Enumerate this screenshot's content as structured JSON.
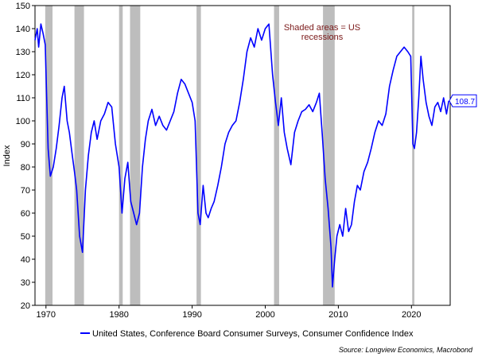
{
  "chart_data": {
    "type": "line",
    "title": "",
    "ylabel": "Index",
    "xlabel": "",
    "ylim": [
      20,
      150
    ],
    "xlim": [
      1968.5,
      2025.3
    ],
    "grid": false,
    "y_ticks": [
      20,
      30,
      40,
      50,
      60,
      70,
      80,
      90,
      100,
      110,
      120,
      130,
      140,
      150
    ],
    "x_ticks": [
      1970,
      1980,
      1990,
      2000,
      2010,
      2020
    ],
    "recessions": [
      [
        1969.9,
        1970.9
      ],
      [
        1973.9,
        1975.2
      ],
      [
        1980.0,
        1980.5
      ],
      [
        1981.5,
        1982.9
      ],
      [
        1990.6,
        1991.2
      ],
      [
        2001.2,
        2001.9
      ],
      [
        2007.9,
        2009.5
      ],
      [
        2020.1,
        2020.4
      ]
    ],
    "annotation": {
      "line1": "Shaded areas = US",
      "line2": "recessions",
      "color": "#7b1a1a"
    },
    "last_value": {
      "label": "108.7",
      "value": 108.7,
      "color": "#0000ff"
    },
    "legend": {
      "placement": "bottom",
      "entry": "United States, Conference Board Consumer Surveys, Consumer Confidence Index"
    },
    "source": "Source: Longview Economics, Macrobond",
    "series": [
      {
        "name": "United States, Conference Board Consumer Surveys, Consumer Confidence Index",
        "color": "#0000ff",
        "x": [
          1968.5,
          1968.8,
          1969.0,
          1969.3,
          1969.6,
          1969.9,
          1970.1,
          1970.3,
          1970.6,
          1971.0,
          1971.4,
          1971.8,
          1972.2,
          1972.5,
          1972.9,
          1973.2,
          1973.6,
          1973.9,
          1974.2,
          1974.6,
          1975.0,
          1975.4,
          1975.8,
          1976.2,
          1976.6,
          1977.0,
          1977.5,
          1978.0,
          1978.5,
          1979.0,
          1979.5,
          1980.0,
          1980.4,
          1980.8,
          1981.2,
          1981.6,
          1982.0,
          1982.4,
          1982.8,
          1983.2,
          1983.6,
          1984.0,
          1984.5,
          1985.0,
          1985.5,
          1986.0,
          1986.5,
          1987.0,
          1987.5,
          1988.0,
          1988.5,
          1989.0,
          1989.5,
          1990.0,
          1990.4,
          1990.8,
          1991.1,
          1991.5,
          1991.9,
          1992.2,
          1992.6,
          1993.0,
          1993.5,
          1994.0,
          1994.5,
          1995.0,
          1995.5,
          1996.0,
          1996.5,
          1997.0,
          1997.5,
          1998.0,
          1998.5,
          1999.0,
          1999.5,
          2000.0,
          2000.5,
          2001.0,
          2001.4,
          2001.8,
          2002.2,
          2002.6,
          2003.0,
          2003.5,
          2004.0,
          2004.5,
          2005.0,
          2005.5,
          2006.0,
          2006.5,
          2007.0,
          2007.4,
          2007.8,
          2008.2,
          2008.6,
          2009.0,
          2009.2,
          2009.5,
          2009.8,
          2010.2,
          2010.6,
          2011.0,
          2011.4,
          2011.8,
          2012.2,
          2012.6,
          2013.0,
          2013.5,
          2014.0,
          2014.5,
          2015.0,
          2015.5,
          2016.0,
          2016.5,
          2017.0,
          2017.5,
          2018.0,
          2018.5,
          2019.0,
          2019.5,
          2019.9,
          2020.2,
          2020.4,
          2020.7,
          2021.0,
          2021.3,
          2021.6,
          2022.0,
          2022.4,
          2022.8,
          2023.2,
          2023.6,
          2024.0,
          2024.4,
          2024.8,
          2025.1
        ],
        "y": [
          135,
          140,
          132,
          142,
          138,
          133,
          110,
          88,
          76,
          80,
          88,
          98,
          110,
          115,
          100,
          95,
          85,
          78,
          70,
          50,
          43,
          70,
          85,
          95,
          100,
          92,
          100,
          103,
          108,
          106,
          90,
          80,
          60,
          75,
          82,
          65,
          60,
          55,
          60,
          80,
          92,
          100,
          105,
          98,
          102,
          98,
          96,
          100,
          104,
          112,
          118,
          116,
          112,
          108,
          100,
          60,
          55,
          72,
          60,
          58,
          62,
          65,
          72,
          80,
          90,
          95,
          98,
          100,
          108,
          118,
          130,
          136,
          132,
          140,
          135,
          140,
          142,
          120,
          108,
          98,
          110,
          95,
          88,
          81,
          95,
          100,
          104,
          105,
          107,
          104,
          108,
          112,
          94,
          75,
          62,
          45,
          28,
          40,
          50,
          55,
          50,
          62,
          52,
          55,
          65,
          72,
          70,
          78,
          82,
          88,
          95,
          100,
          98,
          103,
          115,
          122,
          128,
          130,
          132,
          130,
          128,
          90,
          88,
          95,
          110,
          128,
          118,
          108,
          102,
          98,
          106,
          108,
          104,
          110,
          103,
          108.7
        ]
      }
    ]
  }
}
